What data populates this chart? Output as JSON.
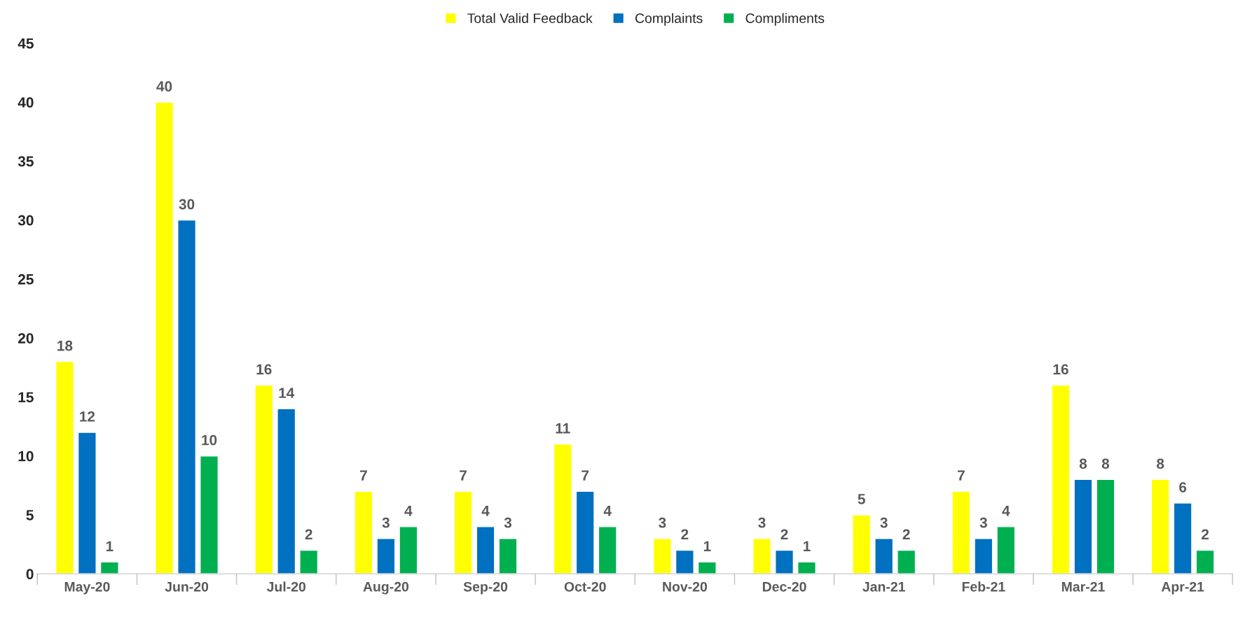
{
  "chart_data": {
    "type": "bar",
    "categories": [
      "May-20",
      "Jun-20",
      "Jul-20",
      "Aug-20",
      "Sep-20",
      "Oct-20",
      "Nov-20",
      "Dec-20",
      "Jan-21",
      "Feb-21",
      "Mar-21",
      "Apr-21"
    ],
    "series": [
      {
        "name": "Total Valid Feedback",
        "color": "#ffff00",
        "values": [
          18,
          40,
          16,
          7,
          7,
          11,
          3,
          3,
          5,
          7,
          16,
          8
        ]
      },
      {
        "name": "Complaints",
        "color": "#0070c0",
        "values": [
          12,
          30,
          14,
          3,
          4,
          7,
          2,
          2,
          3,
          3,
          8,
          6
        ]
      },
      {
        "name": "Compliments",
        "color": "#00b050",
        "values": [
          1,
          10,
          2,
          4,
          3,
          4,
          1,
          1,
          2,
          4,
          8,
          2
        ]
      }
    ],
    "ylim": [
      0,
      45
    ],
    "yticks": [
      0,
      5,
      10,
      15,
      20,
      25,
      30,
      35,
      40,
      45
    ],
    "grid": false,
    "legend": "top",
    "data_labels": true
  }
}
